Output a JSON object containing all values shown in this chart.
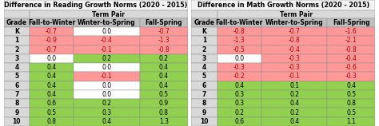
{
  "reading_title": "Difference in Reading Growth Norms (2020 - 2015)",
  "math_title": "Difference in Math Growth Norms (2020 - 2015)",
  "col_headers": [
    "Grade",
    "Fall-to-Winter",
    "Winter-to-Spring",
    "Fall-Spring"
  ],
  "term_pair_label": "Term Pair",
  "grades": [
    "K",
    "1",
    "2",
    "3",
    "4",
    "5",
    "6",
    "7",
    "8",
    "9",
    "10"
  ],
  "reading_data": [
    [
      -0.7,
      0.0,
      -0.7
    ],
    [
      -0.9,
      -0.4,
      -1.3
    ],
    [
      -0.7,
      -0.1,
      -0.8
    ],
    [
      0.0,
      0.2,
      0.2
    ],
    [
      0.4,
      0.0,
      0.4
    ],
    [
      0.4,
      -0.1,
      0.4
    ],
    [
      0.4,
      0.0,
      0.4
    ],
    [
      0.4,
      0.0,
      0.5
    ],
    [
      0.6,
      0.2,
      0.9
    ],
    [
      0.5,
      0.3,
      0.8
    ],
    [
      0.8,
      0.4,
      1.3
    ]
  ],
  "math_data": [
    [
      -0.8,
      -0.7,
      -1.6
    ],
    [
      -1.3,
      -0.8,
      -2.1
    ],
    [
      -0.5,
      -0.4,
      -0.8
    ],
    [
      0.0,
      -0.3,
      -0.4
    ],
    [
      -0.3,
      -0.3,
      -0.6
    ],
    [
      -0.2,
      -0.1,
      -0.3
    ],
    [
      0.4,
      0.1,
      0.4
    ],
    [
      0.3,
      0.2,
      0.5
    ],
    [
      0.3,
      0.4,
      0.8
    ],
    [
      0.2,
      0.2,
      0.5
    ],
    [
      0.6,
      0.4,
      1.1
    ]
  ],
  "color_positive": "#92D050",
  "color_negative": "#FF9999",
  "color_zero_white": "#FFFFFF",
  "color_header_bg": "#BFBFBF",
  "color_term_pair_bg": "#D9D9D9",
  "color_grade_bg": "#D9D9D9",
  "color_title_bg": "#F2F2F2",
  "color_border": "#888888",
  "text_color_negative": "#C00000",
  "text_color_positive": "#000000",
  "title_fontsize": 5.8,
  "header_fontsize": 5.5,
  "cell_fontsize": 5.5
}
